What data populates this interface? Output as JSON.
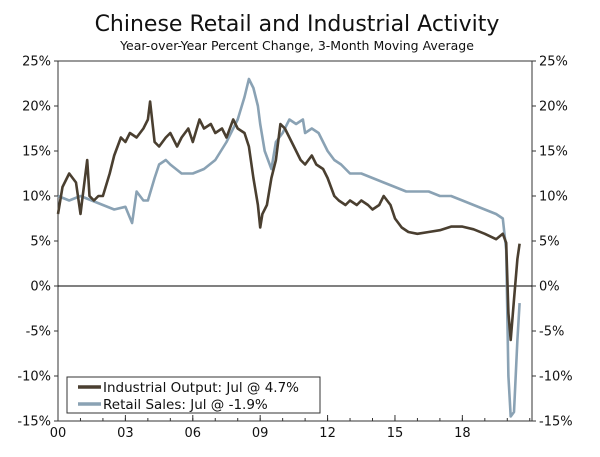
{
  "chart_data": {
    "type": "line",
    "title": "Chinese Retail and Industrial Activity",
    "subtitle": "Year-over-Year Percent Change, 3-Month Moving Average",
    "xlabel": "",
    "ylabel": "",
    "x_tick_labels": [
      "00",
      "03",
      "06",
      "09",
      "12",
      "15",
      "18"
    ],
    "x_tick_years": [
      2000,
      2003,
      2006,
      2009,
      2012,
      2015,
      2018
    ],
    "xlim": [
      2000,
      2021.1
    ],
    "ylim": [
      -15,
      25
    ],
    "y_ticks": [
      -15,
      -10,
      -5,
      0,
      5,
      10,
      15,
      20,
      25
    ],
    "y_tick_labels_left": [
      "-15%",
      "-10%",
      "-5%",
      "0%",
      "5%",
      "10%",
      "15%",
      "20%",
      "25%"
    ],
    "y_tick_labels_right": [
      "-15%",
      "-10%",
      "-5%",
      "0%",
      "5%",
      "10%",
      "15%",
      "20%",
      "25%"
    ],
    "zero_line": true,
    "legend_position": "bottom-left",
    "series": [
      {
        "name": "Industrial Output: Jul @ 4.7%",
        "color": "#4a3f30",
        "x": [
          2000.0,
          2000.2,
          2000.5,
          2000.8,
          2001.0,
          2001.1,
          2001.3,
          2001.4,
          2001.6,
          2001.8,
          2002.0,
          2002.3,
          2002.5,
          2002.8,
          2003.0,
          2003.2,
          2003.5,
          2003.8,
          2004.0,
          2004.1,
          2004.3,
          2004.5,
          2004.8,
          2005.0,
          2005.3,
          2005.5,
          2005.8,
          2006.0,
          2006.3,
          2006.5,
          2006.8,
          2007.0,
          2007.3,
          2007.5,
          2007.8,
          2008.0,
          2008.3,
          2008.5,
          2008.7,
          2008.9,
          2009.0,
          2009.1,
          2009.3,
          2009.5,
          2009.7,
          2009.9,
          2010.1,
          2010.3,
          2010.5,
          2010.8,
          2011.0,
          2011.3,
          2011.5,
          2011.8,
          2012.0,
          2012.3,
          2012.5,
          2012.8,
          2013.0,
          2013.3,
          2013.5,
          2013.8,
          2014.0,
          2014.3,
          2014.5,
          2014.8,
          2015.0,
          2015.3,
          2015.6,
          2016.0,
          2016.5,
          2017.0,
          2017.5,
          2018.0,
          2018.5,
          2019.0,
          2019.5,
          2019.8,
          2019.95,
          2020.05,
          2020.15,
          2020.3,
          2020.45,
          2020.55
        ],
        "values": [
          8.0,
          11.0,
          12.5,
          11.5,
          8.0,
          10.0,
          14.0,
          10.0,
          9.5,
          10.0,
          10.0,
          12.5,
          14.5,
          16.5,
          16.0,
          17.0,
          16.5,
          17.5,
          18.5,
          20.5,
          16.0,
          15.5,
          16.5,
          17.0,
          15.5,
          16.5,
          17.5,
          16.0,
          18.5,
          17.5,
          18.0,
          17.0,
          17.5,
          16.5,
          18.5,
          17.5,
          17.0,
          15.5,
          12.0,
          9.0,
          6.5,
          8.0,
          9.0,
          12.0,
          14.0,
          18.0,
          17.5,
          16.5,
          15.5,
          14.0,
          13.5,
          14.5,
          13.5,
          13.0,
          12.0,
          10.0,
          9.5,
          9.0,
          9.5,
          9.0,
          9.5,
          9.0,
          8.5,
          9.0,
          10.0,
          9.0,
          7.5,
          6.5,
          6.0,
          5.8,
          6.0,
          6.2,
          6.6,
          6.6,
          6.3,
          5.8,
          5.2,
          5.8,
          4.8,
          -3.0,
          -6.0,
          -1.5,
          3.0,
          4.7
        ]
      },
      {
        "name": "Retail Sales: Jul @ -1.9%",
        "color": "#8aa2b4",
        "x": [
          2000.0,
          2000.5,
          2001.0,
          2001.5,
          2002.0,
          2002.5,
          2003.0,
          2003.3,
          2003.5,
          2003.8,
          2004.0,
          2004.3,
          2004.5,
          2004.8,
          2005.0,
          2005.5,
          2006.0,
          2006.5,
          2007.0,
          2007.5,
          2008.0,
          2008.3,
          2008.5,
          2008.7,
          2008.9,
          2009.0,
          2009.2,
          2009.5,
          2009.7,
          2010.0,
          2010.3,
          2010.6,
          2010.9,
          2011.0,
          2011.3,
          2011.6,
          2012.0,
          2012.3,
          2012.6,
          2013.0,
          2013.5,
          2014.0,
          2014.5,
          2015.0,
          2015.5,
          2016.0,
          2016.5,
          2017.0,
          2017.5,
          2018.0,
          2018.5,
          2019.0,
          2019.5,
          2019.8,
          2019.95,
          2020.05,
          2020.15,
          2020.3,
          2020.45,
          2020.55
        ],
        "values": [
          10.0,
          9.5,
          10.0,
          9.5,
          9.0,
          8.5,
          8.8,
          7.0,
          10.5,
          9.5,
          9.5,
          12.0,
          13.5,
          14.0,
          13.5,
          12.5,
          12.5,
          13.0,
          14.0,
          16.0,
          18.5,
          21.0,
          23.0,
          22.0,
          20.0,
          18.0,
          15.0,
          13.0,
          16.0,
          17.0,
          18.5,
          18.0,
          18.5,
          17.0,
          17.5,
          17.0,
          15.0,
          14.0,
          13.5,
          12.5,
          12.5,
          12.0,
          11.5,
          11.0,
          10.5,
          10.5,
          10.5,
          10.0,
          10.0,
          9.5,
          9.0,
          8.5,
          8.0,
          7.5,
          4.0,
          -10.0,
          -14.5,
          -14.0,
          -6.0,
          -1.9
        ]
      }
    ]
  }
}
